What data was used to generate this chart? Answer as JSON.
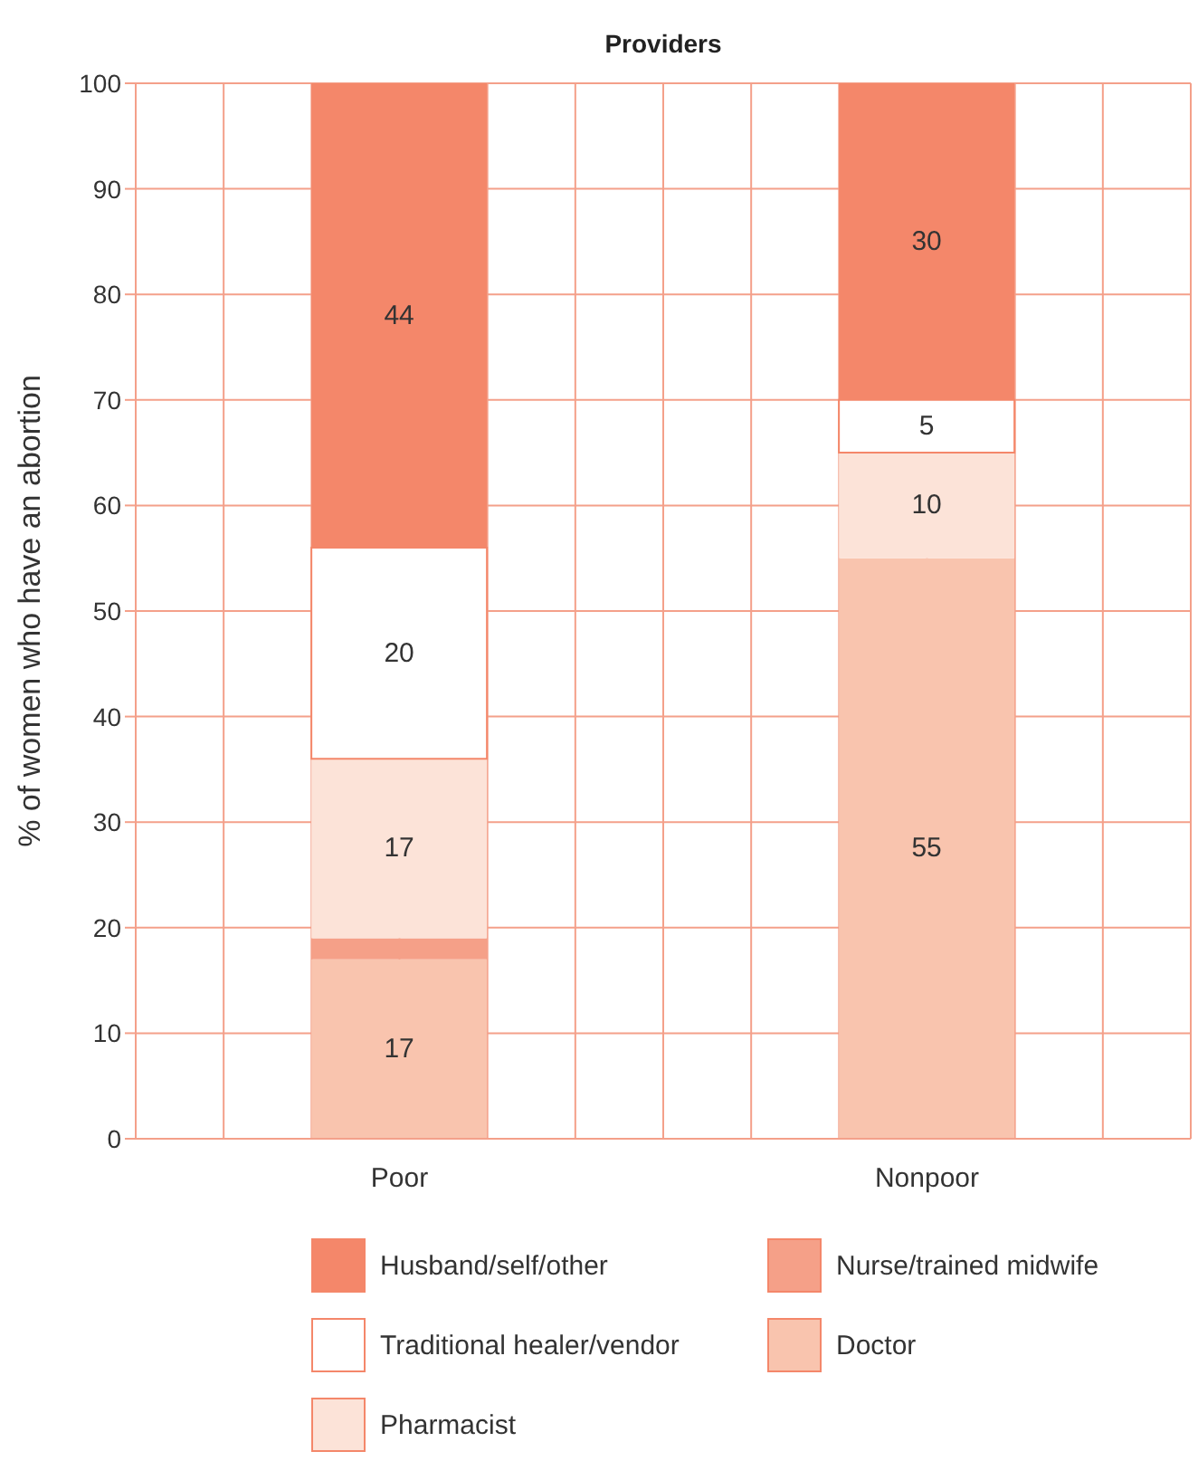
{
  "chart_data": {
    "type": "bar",
    "title": "Providers",
    "ylabel": "% of women who have an abortion",
    "categories": [
      "Poor",
      "Nonpoor"
    ],
    "stacked": true,
    "ylim": [
      0,
      100
    ],
    "yticks": [
      0,
      10,
      20,
      30,
      40,
      50,
      60,
      70,
      80,
      90,
      100
    ],
    "grid": true,
    "legend": "bottom",
    "series": [
      {
        "name": "Doctor",
        "color": "#f9c4ae",
        "values": [
          17,
          55
        ],
        "value_labels": [
          "17",
          "55"
        ]
      },
      {
        "name": "Nurse/trained midwife",
        "color": "#f5a088",
        "values": [
          2,
          null
        ],
        "value_labels": [
          null,
          null
        ]
      },
      {
        "name": "Pharmacist",
        "color": "#fce3d8",
        "values": [
          17,
          10
        ],
        "value_labels": [
          "17",
          "10"
        ]
      },
      {
        "name": "Traditional healer/vendor",
        "color": "#ffffff",
        "values": [
          20,
          5
        ],
        "value_labels": [
          "20",
          "5"
        ]
      },
      {
        "name": "Husband/self/other",
        "color": "#f4876a",
        "values": [
          44,
          30
        ],
        "value_labels": [
          "44",
          "30"
        ]
      }
    ]
  }
}
